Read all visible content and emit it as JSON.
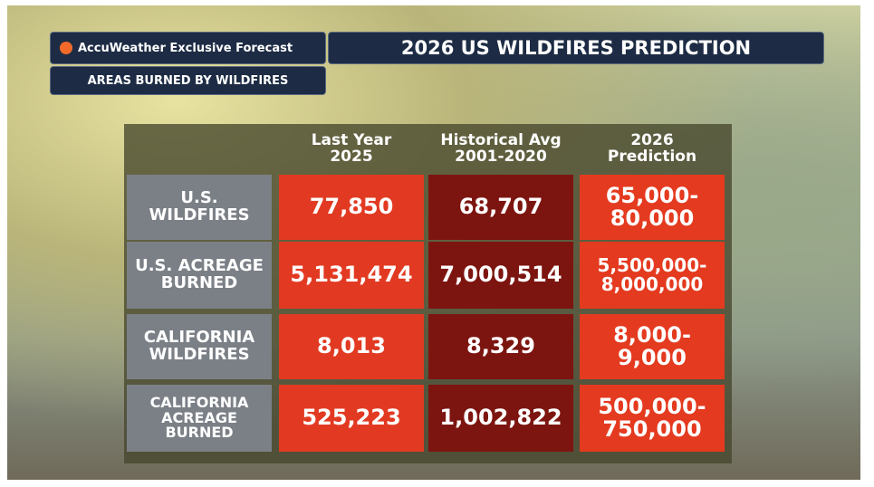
{
  "header": {
    "brand": "AccuWeather Exclusive Forecast",
    "title": "2026 US WILDFIRES PREDICTION",
    "subtitle": "AREAS BURNED BY WILDFIRES"
  },
  "table": {
    "columns": [
      [
        "Last Year",
        "2025"
      ],
      [
        "Historical Avg",
        "2001-2020"
      ],
      [
        "2026",
        "Prediction"
      ]
    ],
    "rows": [
      {
        "label": [
          "U.S.",
          "WILDFIRES"
        ],
        "cells": [
          [
            "77,850"
          ],
          [
            "68,707"
          ],
          [
            "65,000-",
            "80,000"
          ]
        ]
      },
      {
        "label": [
          "U.S. ACREAGE",
          "BURNED"
        ],
        "cells": [
          [
            "5,131,474"
          ],
          [
            "7,000,514"
          ],
          [
            "5,500,000-",
            "8,000,000"
          ]
        ]
      },
      {
        "label": [
          "CALIFORNIA",
          "WILDFIRES"
        ],
        "cells": [
          [
            "8,013"
          ],
          [
            "8,329"
          ],
          [
            "8,000-",
            "9,000"
          ]
        ]
      },
      {
        "label": [
          "CALIFORNIA",
          "ACREAGE",
          "BURNED"
        ],
        "cells": [
          [
            "525,223"
          ],
          [
            "1,002,822"
          ],
          [
            "500,000-",
            "750,000"
          ]
        ]
      }
    ]
  }
}
